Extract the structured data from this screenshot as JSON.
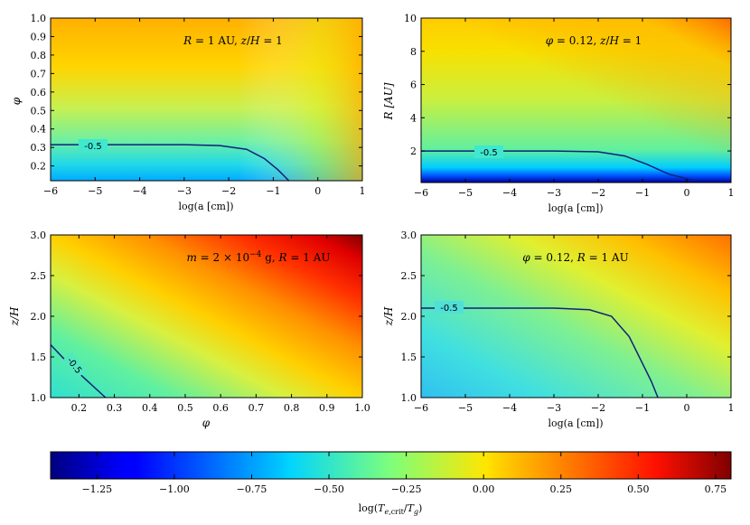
{
  "chart_data": [
    {
      "type": "heatmap",
      "annotation": "R = 1 AU, z/H = 1",
      "xlabel": "log(a [cm])",
      "ylabel": "φ",
      "xlim": [
        -6,
        1
      ],
      "ylim": [
        0.12,
        1.0
      ],
      "xticks": [
        "−6",
        "−5",
        "−4",
        "−3",
        "−2",
        "−1",
        "0",
        "1"
      ],
      "yticks": [
        "0.2",
        "0.3",
        "0.4",
        "0.5",
        "0.6",
        "0.7",
        "0.8",
        "0.9",
        "1.0"
      ],
      "contour": {
        "level_label": "-0.5",
        "points": [
          [
            -6,
            0.315
          ],
          [
            -3,
            0.315
          ],
          [
            -2.2,
            0.31
          ],
          [
            -1.6,
            0.29
          ],
          [
            -1.2,
            0.24
          ],
          [
            -0.9,
            0.18
          ],
          [
            -0.65,
            0.12
          ]
        ]
      }
    },
    {
      "type": "heatmap",
      "annotation": "φ = 0.12, z/H = 1",
      "xlabel": "log(a [cm])",
      "ylabel": "R [AU]",
      "xlim": [
        -6,
        1
      ],
      "ylim": [
        0.1,
        10
      ],
      "xticks": [
        "−6",
        "−5",
        "−4",
        "−3",
        "−2",
        "−1",
        "0",
        "1"
      ],
      "yticks": [
        "2",
        "4",
        "6",
        "8",
        "10"
      ],
      "contour": {
        "level_label": "-0.5",
        "points": [
          [
            -6,
            2.0
          ],
          [
            -3,
            2.0
          ],
          [
            -2,
            1.95
          ],
          [
            -1.4,
            1.7
          ],
          [
            -0.9,
            1.2
          ],
          [
            -0.4,
            0.6
          ],
          [
            0.2,
            0.2
          ]
        ]
      }
    },
    {
      "type": "heatmap",
      "annotation": "m = 2 × 10⁻⁴ g, R = 1 AU",
      "xlabel": "φ",
      "ylabel": "z/H",
      "xlim": [
        0.12,
        1.0
      ],
      "ylim": [
        1.0,
        3.0
      ],
      "xticks": [
        "0.2",
        "0.3",
        "0.4",
        "0.5",
        "0.6",
        "0.7",
        "0.8",
        "0.9",
        "1.0"
      ],
      "yticks": [
        "1.0",
        "1.5",
        "2.0",
        "2.5",
        "3.0"
      ],
      "contour": {
        "level_label": "-0.5",
        "points": [
          [
            0.12,
            1.65
          ],
          [
            0.17,
            1.42
          ],
          [
            0.22,
            1.22
          ],
          [
            0.275,
            1.0
          ]
        ]
      }
    },
    {
      "type": "heatmap",
      "annotation": "φ = 0.12, R = 1 AU",
      "xlabel": "log(a [cm])",
      "ylabel": "z/H",
      "xlim": [
        -6,
        1
      ],
      "ylim": [
        1.0,
        3.0
      ],
      "xticks": [
        "−6",
        "−5",
        "−4",
        "−3",
        "−2",
        "−1",
        "0",
        "1"
      ],
      "yticks": [
        "1.0",
        "1.5",
        "2.0",
        "2.5",
        "3.0"
      ],
      "contour": {
        "level_label": "-0.5",
        "points": [
          [
            -6,
            2.1
          ],
          [
            -3,
            2.1
          ],
          [
            -2.2,
            2.08
          ],
          [
            -1.7,
            2.0
          ],
          [
            -1.3,
            1.75
          ],
          [
            -1.0,
            1.42
          ],
          [
            -0.8,
            1.2
          ],
          [
            -0.65,
            1.0
          ]
        ]
      }
    }
  ],
  "colorbar": {
    "label": "log(T_e,crit/T_g)",
    "ticks": [
      "−1.25",
      "−1.00",
      "−0.75",
      "−0.50",
      "−0.25",
      "0.00",
      "0.25",
      "0.50",
      "0.75"
    ],
    "range": [
      -1.4,
      0.8
    ]
  }
}
